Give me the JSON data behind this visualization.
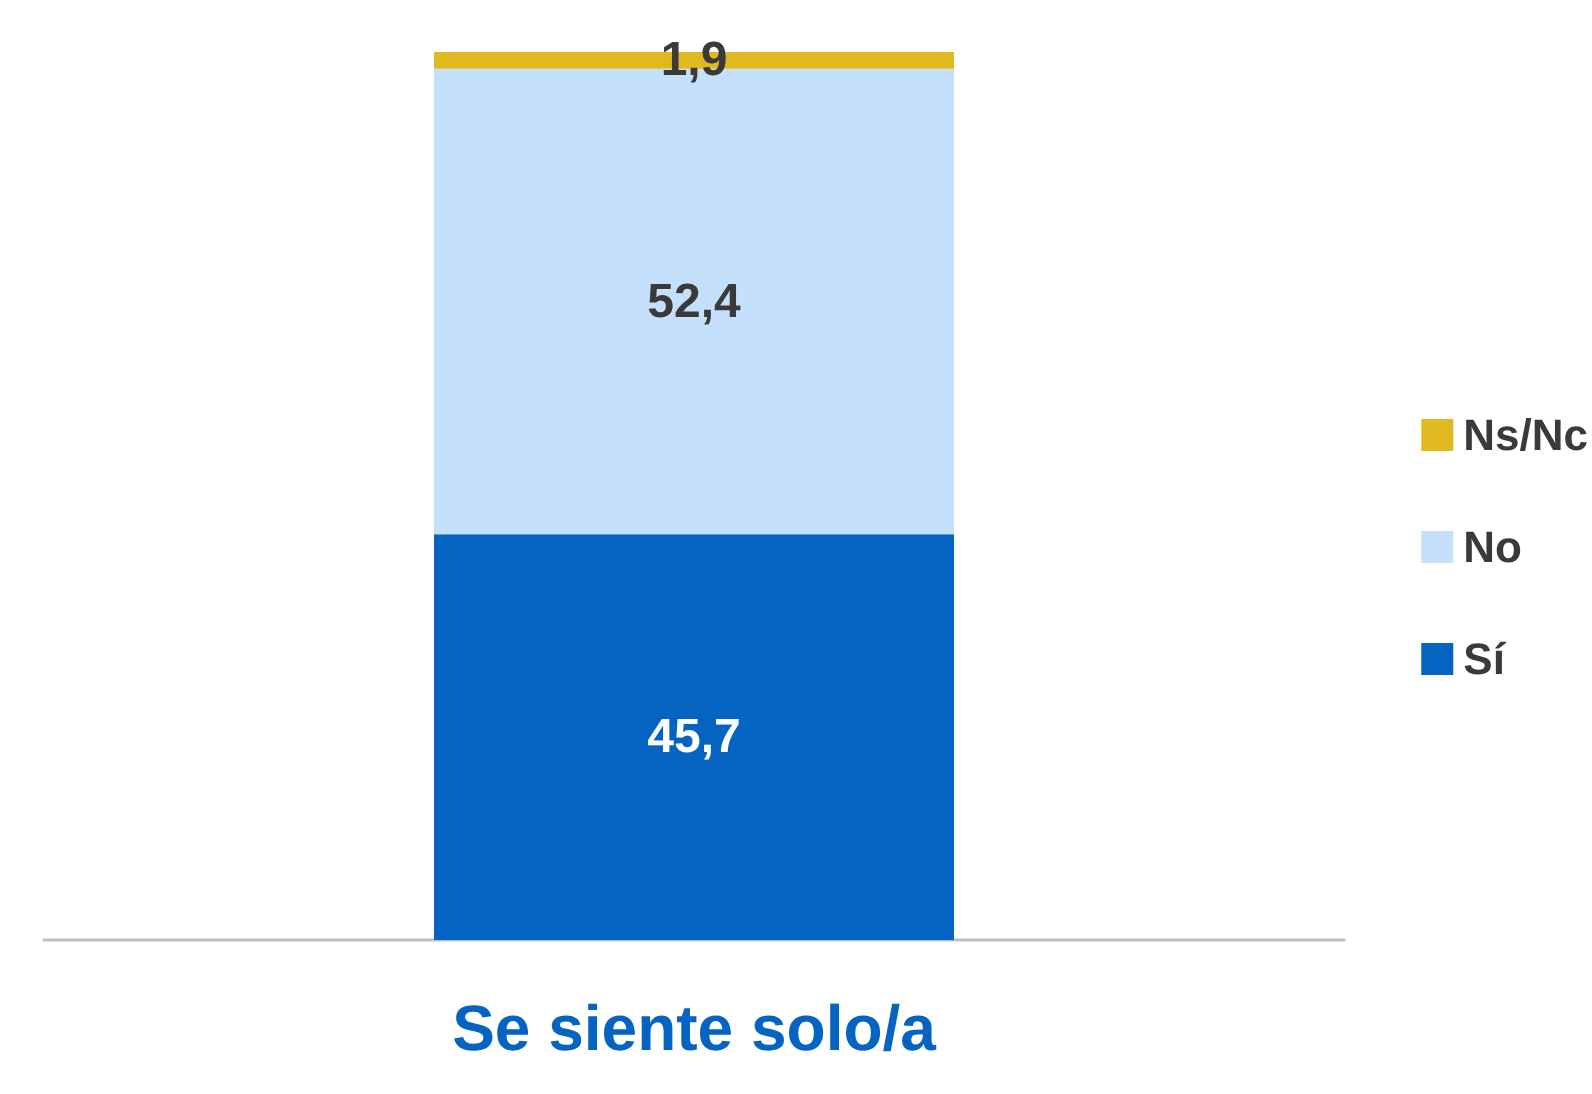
{
  "chart_data": {
    "type": "bar",
    "stacked": true,
    "categories": [
      "Se siente solo/a"
    ],
    "series": [
      {
        "name": "Sí",
        "color": "#0563c1",
        "values": [
          45.7
        ],
        "value_labels": [
          "45,7"
        ]
      },
      {
        "name": "No",
        "color": "#c5e0fb",
        "values": [
          52.4
        ],
        "value_labels": [
          "52,4"
        ]
      },
      {
        "name": "Ns/Nc",
        "color": "#e0b820",
        "values": [
          1.9
        ],
        "value_labels": [
          "1,9"
        ]
      }
    ],
    "legend": "right",
    "grid": false
  }
}
